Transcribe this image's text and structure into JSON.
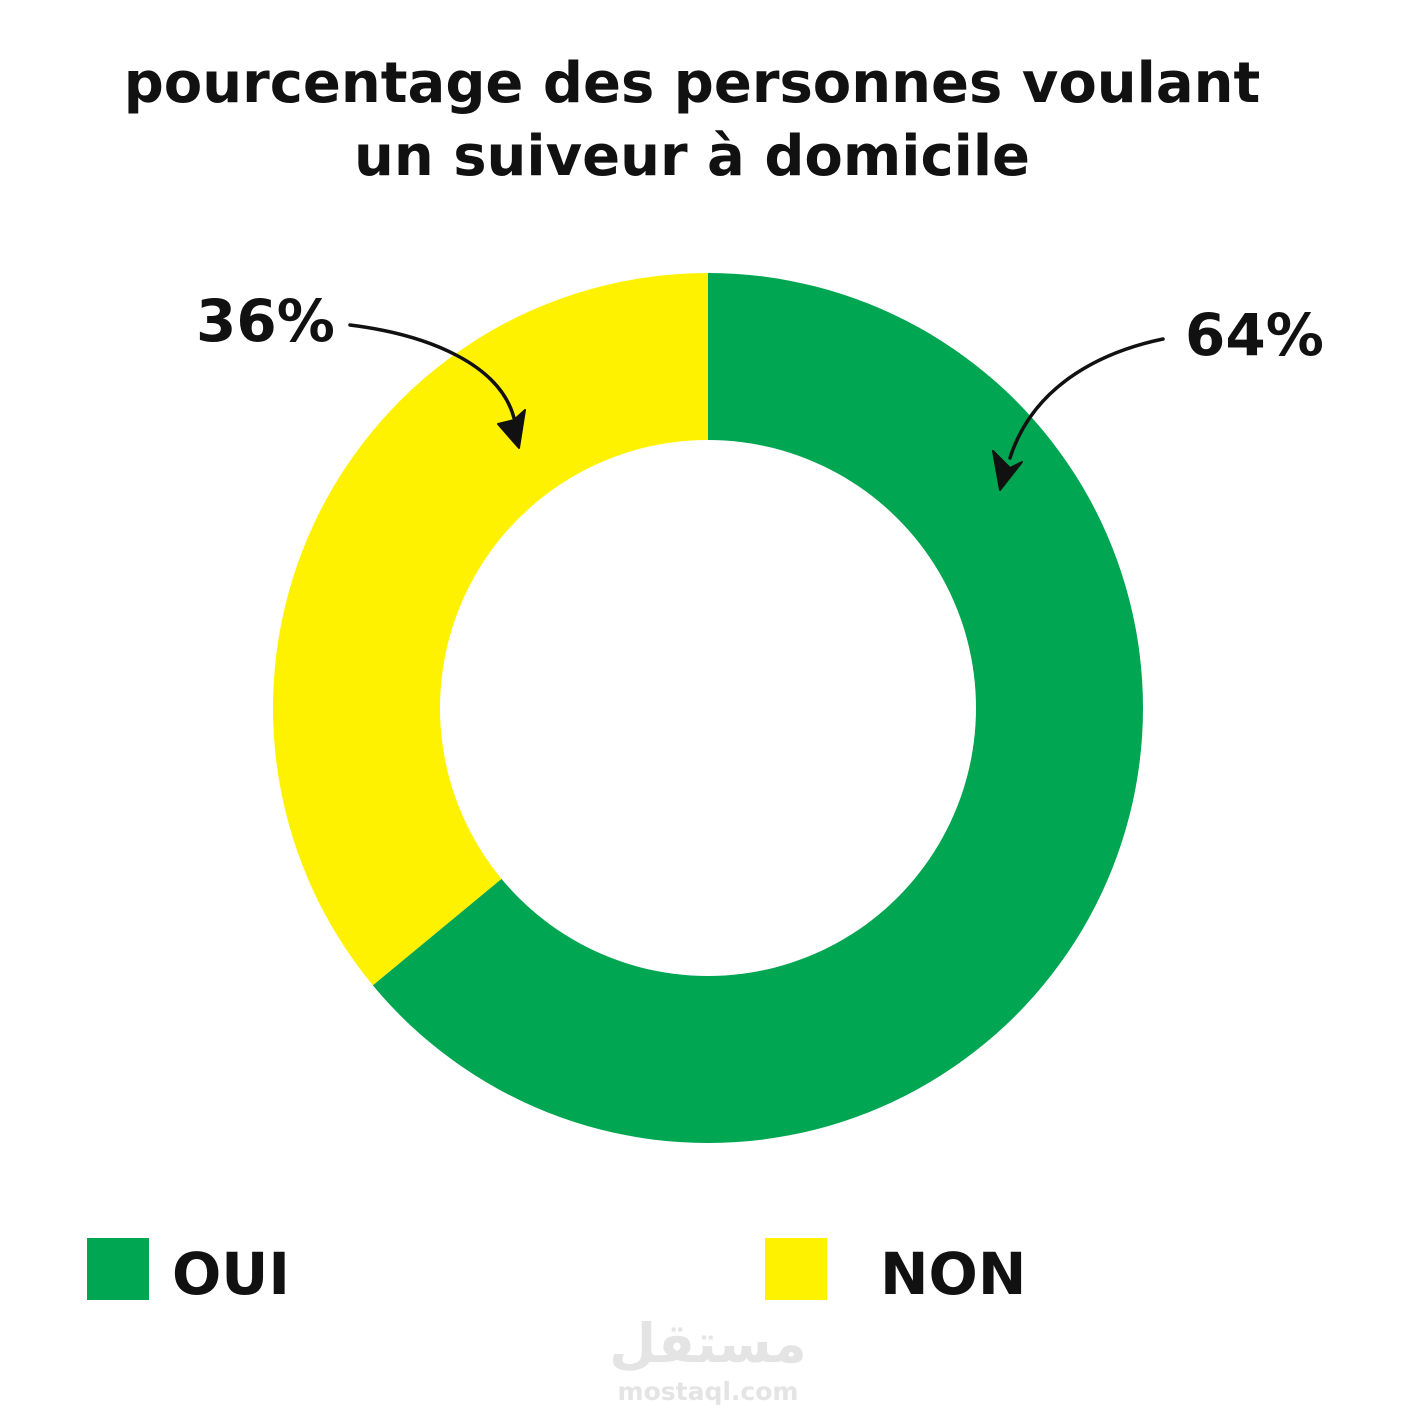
{
  "chart_data": {
    "type": "pie",
    "variant": "donut",
    "title_lines": [
      "pourcentage des personnes voulant",
      "un suiveur à  domicile"
    ],
    "categories": [
      "OUI",
      "NON"
    ],
    "values": [
      64,
      36
    ],
    "value_labels": [
      "64%",
      "36%"
    ],
    "colors": [
      "#00a651",
      "#fff200"
    ],
    "legend_position": "bottom",
    "start_angle_deg": 0,
    "direction": "clockwise"
  },
  "watermark": {
    "arabic": "مستقل",
    "latin": "mostaql.com"
  }
}
